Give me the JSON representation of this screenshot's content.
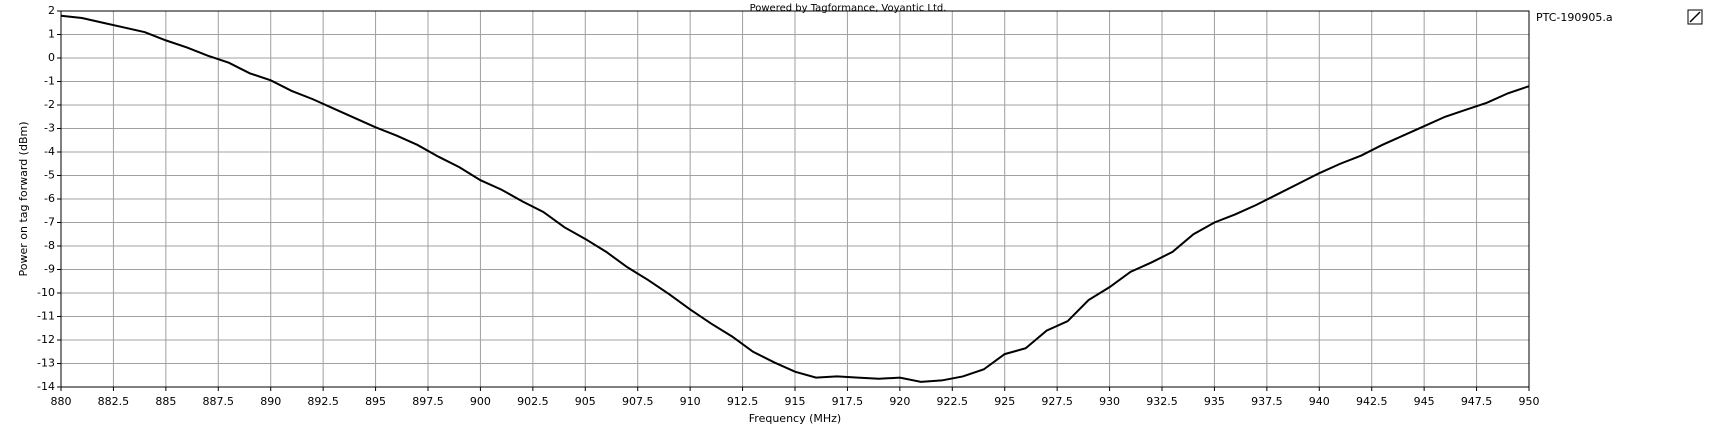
{
  "chart_data": {
    "type": "line",
    "title": "Powered by Tagformance, Voyantic Ltd.",
    "x_label": "Frequency (MHz)",
    "y_label": "Power on tag forward (dBm)",
    "x": [
      880,
      881,
      882,
      883,
      884,
      885,
      886,
      887,
      888,
      889,
      890,
      891,
      892,
      893,
      894,
      895,
      896,
      897,
      898,
      899,
      900,
      901,
      902,
      903,
      904,
      905,
      906,
      907,
      908,
      909,
      910,
      911,
      912,
      913,
      914,
      915,
      916,
      917,
      918,
      919,
      920,
      921,
      922,
      923,
      924,
      925,
      926,
      927,
      928,
      929,
      930,
      931,
      932,
      933,
      934,
      935,
      936,
      937,
      938,
      939,
      940,
      941,
      942,
      943,
      944,
      945,
      946,
      947,
      948,
      949,
      950
    ],
    "series": [
      {
        "name": "PTC-190905.a",
        "color": "#000000",
        "values": [
          1.8,
          1.7,
          1.5,
          1.3,
          1.1,
          0.75,
          0.45,
          0.1,
          -0.2,
          -0.65,
          -0.95,
          -1.4,
          -1.75,
          -2.15,
          -2.55,
          -2.95,
          -3.3,
          -3.7,
          -4.2,
          -4.65,
          -5.2,
          -5.6,
          -6.1,
          -6.55,
          -7.2,
          -7.7,
          -8.25,
          -8.9,
          -9.45,
          -10.05,
          -10.7,
          -11.3,
          -11.85,
          -12.5,
          -12.95,
          -13.35,
          -13.6,
          -13.55,
          -13.6,
          -13.65,
          -13.6,
          -13.78,
          -13.72,
          -13.55,
          -13.25,
          -12.6,
          -12.35,
          -11.6,
          -11.2,
          -10.3,
          -9.75,
          -9.1,
          -8.7,
          -8.25,
          -7.5,
          -7.0,
          -6.65,
          -6.25,
          -5.8,
          -5.35,
          -4.9,
          -4.5,
          -4.15,
          -3.7,
          -3.3,
          -2.9,
          -2.5,
          -2.2,
          -1.9,
          -1.5,
          -1.2
        ]
      }
    ],
    "xlim": [
      880,
      950
    ],
    "xticks": [
      880,
      882.5,
      885,
      887.5,
      890,
      892.5,
      895,
      897.5,
      900,
      902.5,
      905,
      907.5,
      910,
      912.5,
      915,
      917.5,
      920,
      922.5,
      925,
      927.5,
      930,
      932.5,
      935,
      937.5,
      940,
      942.5,
      945,
      947.5,
      950
    ],
    "ylim": [
      -14,
      2
    ],
    "yticks": [
      -14,
      -13,
      -12,
      -11,
      -10,
      -9,
      -8,
      -7,
      -6,
      -5,
      -4,
      -3,
      -2,
      -1,
      0,
      1,
      2
    ],
    "grid": true
  }
}
